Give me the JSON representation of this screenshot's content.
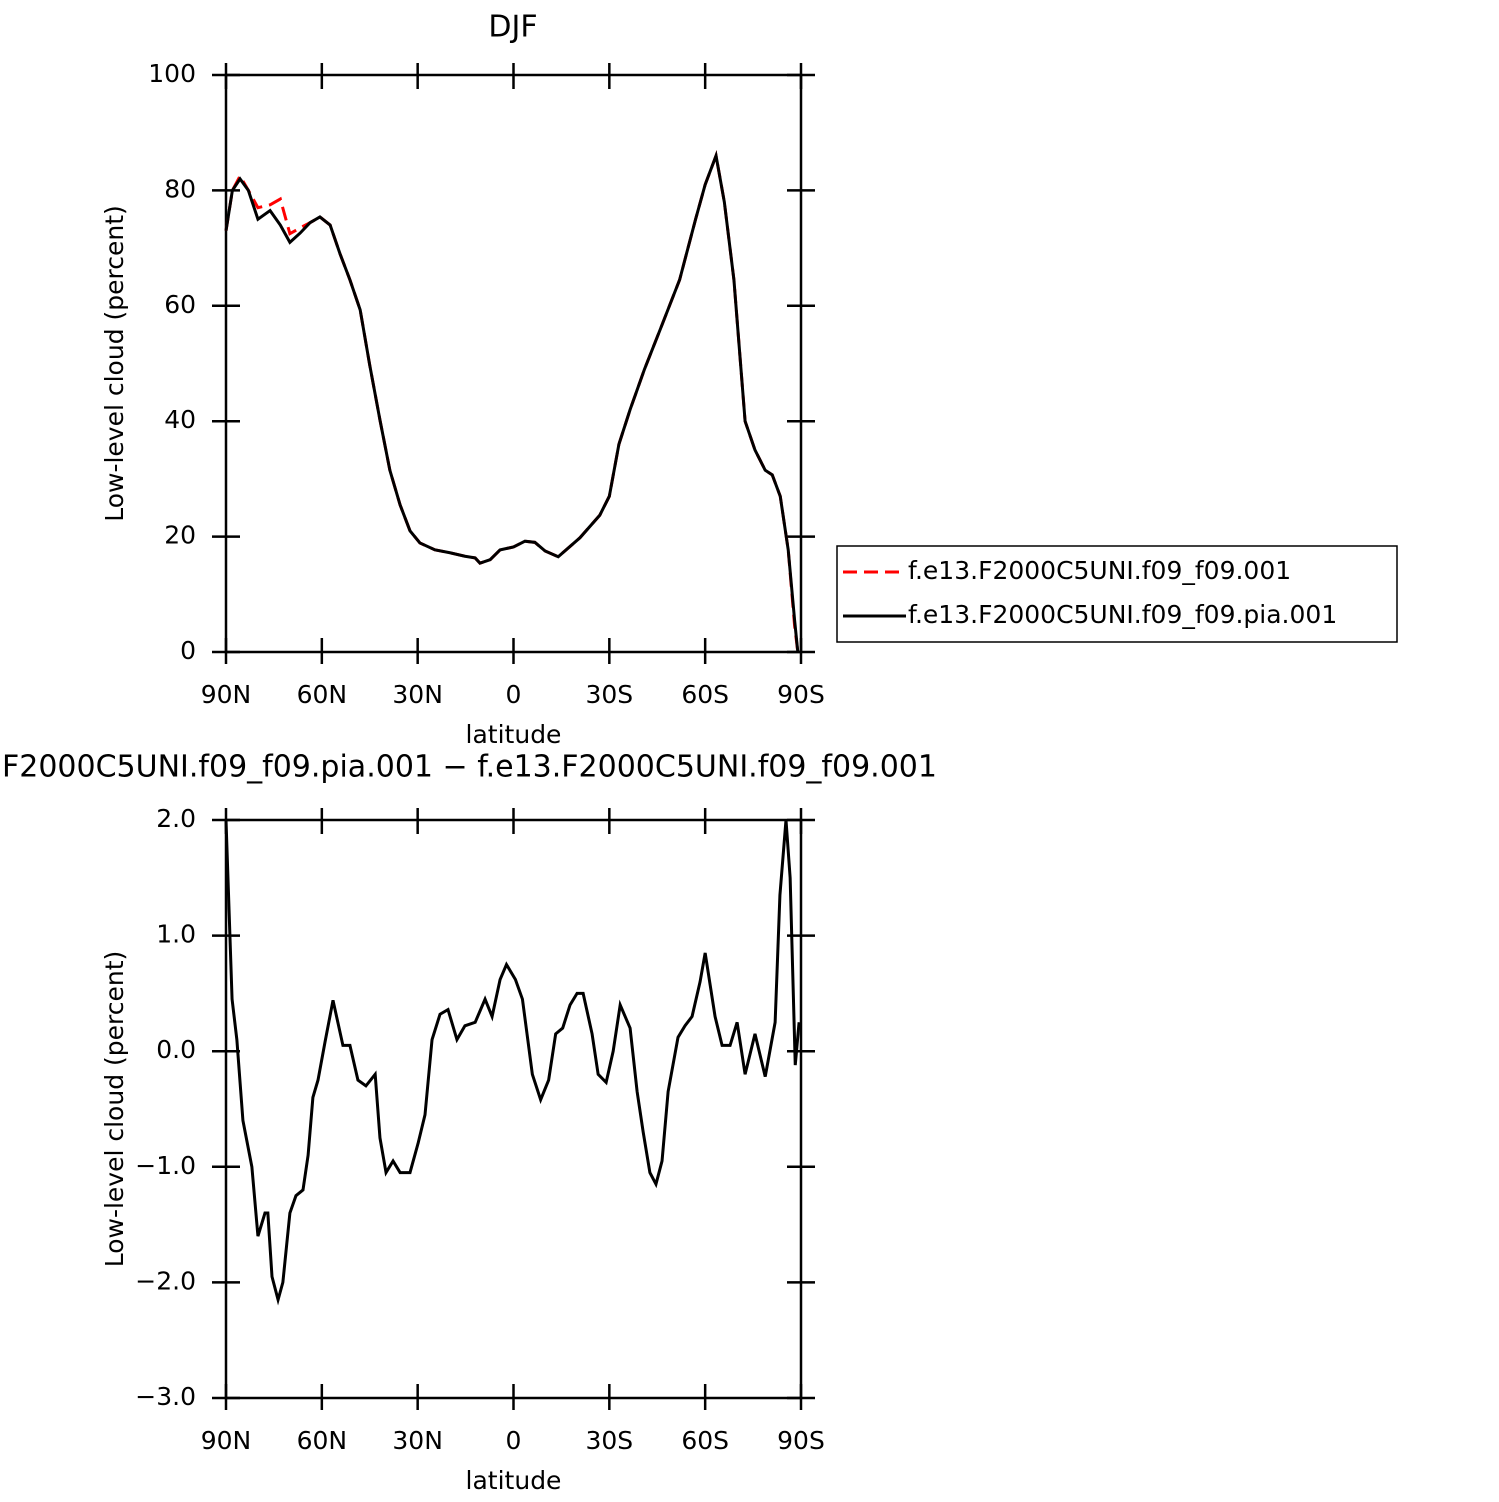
{
  "chart_data": [
    {
      "type": "line",
      "title": "DJF",
      "x_label": "latitude",
      "y_label": "Low-level cloud (percent)",
      "x": [
        90,
        88,
        85.6,
        83,
        80,
        76.2,
        73,
        70,
        66.8,
        63.7,
        60.6,
        57.4,
        54.3,
        51.2,
        48,
        45,
        41.8,
        38.7,
        35.5,
        32.4,
        29.3,
        24.6,
        19.9,
        15.2,
        12,
        10.5,
        7.3,
        4.2,
        0,
        -3.6,
        -6.7,
        -9.9,
        -14,
        -20.8,
        -27,
        -30,
        -33,
        -36.5,
        -41,
        -46,
        -52,
        -57,
        -60,
        -63.4,
        -66,
        -69,
        -72.5,
        -75.6,
        -78.8,
        -81,
        -83.5,
        -86,
        -88,
        -89
      ],
      "series": [
        {
          "name": "f.e13.F2000C5UNI.f09_f09.001",
          "color": "#ff0000",
          "dashed": true,
          "values": [
            73,
            80,
            82.5,
            80,
            77,
            77.5,
            78.5,
            72.5,
            73.5,
            74.4,
            75.4,
            74,
            69,
            64.5,
            59.3,
            49.7,
            40.2,
            31.5,
            25.5,
            21,
            18.9,
            17.7,
            17.2,
            16.6,
            16.3,
            15.4,
            16,
            17.7,
            18.2,
            19.2,
            19,
            17.5,
            16.5,
            19.8,
            23.7,
            27,
            36,
            42,
            49,
            56,
            64.5,
            75,
            81,
            86,
            78,
            64.5,
            40,
            35,
            31.5,
            30.7,
            27,
            17.7,
            4.5,
            0
          ]
        },
        {
          "name": "f.e13.F2000C5UNI.f09_f09.pia.001",
          "color": "#000000",
          "dashed": false,
          "values": [
            73,
            80,
            82,
            80,
            75,
            76.5,
            74,
            71,
            72.6,
            74.4,
            75.4,
            74,
            69,
            64.5,
            59.3,
            49.7,
            40.2,
            31.5,
            25.5,
            21,
            18.9,
            17.7,
            17.2,
            16.6,
            16.3,
            15.4,
            16,
            17.7,
            18.2,
            19.2,
            19,
            17.5,
            16.5,
            19.8,
            23.7,
            27,
            36,
            42,
            49,
            56,
            64.5,
            75,
            81,
            86,
            78,
            64.5,
            40,
            35,
            31.5,
            30.7,
            27,
            17.7,
            5.5,
            0
          ]
        }
      ],
      "xlim": [
        90,
        -90
      ],
      "xticks": [
        {
          "value": 90,
          "label": "90N"
        },
        {
          "value": 60,
          "label": "60N"
        },
        {
          "value": 30,
          "label": "30N"
        },
        0,
        {
          "value": -30,
          "label": "30S"
        },
        {
          "value": -60,
          "label": "60S"
        },
        {
          "value": -90,
          "label": "90S"
        }
      ],
      "ylim": [
        0,
        100
      ],
      "yticks": [
        0,
        20,
        40,
        60,
        80,
        100
      ],
      "legend": "right"
    },
    {
      "type": "line",
      "title": "F2000C5UNI.f09_f09.pia.001 − f.e13.F2000C5UNI.f09_f09.001",
      "x_label": "latitude",
      "y_label": "Low-level cloud (percent)",
      "x": [
        90,
        88.1,
        86.6,
        84.7,
        81.9,
        80,
        77.8,
        76.9,
        75.6,
        73.7,
        72.2,
        70,
        68.1,
        65.9,
        64.3,
        62.8,
        61.2,
        59,
        56.5,
        53.4,
        51.2,
        48.7,
        46.2,
        43.3,
        41.8,
        39.9,
        37.7,
        35.5,
        32.4,
        29.9,
        27.7,
        25.5,
        23,
        20.5,
        17.7,
        15.2,
        12,
        8.9,
        6.7,
        4.2,
        2.2,
        -0.6,
        -2.8,
        -5.9,
        -8.5,
        -11,
        -13.2,
        -15.4,
        -17.7,
        -19.9,
        -21.8,
        -24.6,
        -26.5,
        -29,
        -31.2,
        -33.4,
        -36.5,
        -38.7,
        -40.6,
        -42.7,
        -44.6,
        -46.5,
        -48.4,
        -51.5,
        -53.7,
        -55.9,
        -58.4,
        -60,
        -63.1,
        -65.3,
        -67.8,
        -70,
        -72.5,
        -75.6,
        -78.8,
        -81.9,
        -83.4,
        -85.3,
        -86.6,
        -88.2,
        -89.4
      ],
      "series": [
        {
          "color": "#000000",
          "values": [
            2.0,
            0.45,
            0.1,
            -0.6,
            -1.0,
            -1.6,
            -1.4,
            -1.4,
            -1.95,
            -2.15,
            -2.0,
            -1.4,
            -1.25,
            -1.2,
            -0.9,
            -0.4,
            -0.25,
            0.08,
            0.44,
            0.05,
            0.05,
            -0.25,
            -0.3,
            -0.2,
            -0.75,
            -1.05,
            -0.95,
            -1.05,
            -1.05,
            -0.8,
            -0.55,
            0.1,
            0.32,
            0.36,
            0.1,
            0.22,
            0.25,
            0.45,
            0.3,
            0.62,
            0.75,
            0.62,
            0.45,
            -0.2,
            -0.42,
            -0.25,
            0.15,
            0.2,
            0.4,
            0.5,
            0.5,
            0.15,
            -0.2,
            -0.27,
            0.0,
            0.4,
            0.2,
            -0.35,
            -0.7,
            -1.05,
            -1.15,
            -0.95,
            -0.35,
            0.12,
            0.22,
            0.3,
            0.6,
            0.85,
            0.3,
            0.05,
            0.05,
            0.25,
            -0.2,
            0.15,
            -0.22,
            0.25,
            1.35,
            2.0,
            1.5,
            -0.12,
            0.25
          ]
        }
      ],
      "xlim": [
        90,
        -90
      ],
      "xticks": [
        {
          "value": 90,
          "label": "90N"
        },
        {
          "value": 60,
          "label": "60N"
        },
        {
          "value": 30,
          "label": "30N"
        },
        0,
        {
          "value": -30,
          "label": "30S"
        },
        {
          "value": -60,
          "label": "60S"
        },
        {
          "value": -90,
          "label": "90S"
        }
      ],
      "ylim": [
        -3,
        2
      ],
      "yticks": [
        {
          "value": -3,
          "label": "−3.0"
        },
        {
          "value": -2,
          "label": "−2.0"
        },
        {
          "value": -1,
          "label": "−1.0"
        },
        {
          "value": 0,
          "label": "0.0"
        },
        {
          "value": 1,
          "label": "1.0"
        },
        {
          "value": 2,
          "label": "2.0"
        }
      ]
    }
  ]
}
